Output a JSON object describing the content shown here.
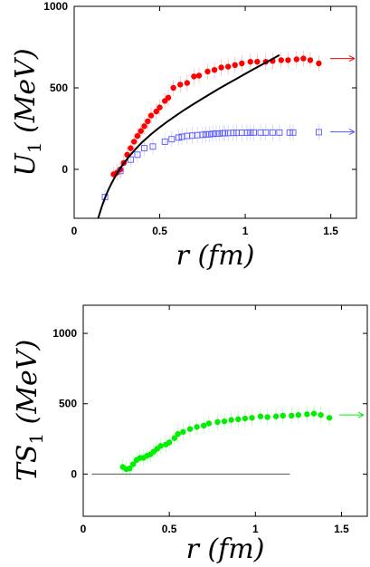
{
  "chart_data": [
    {
      "type": "scatter",
      "title": "",
      "xlabel": "r (fm)",
      "ylabel": "U1 (MeV)",
      "xlim": [
        0,
        1.65
      ],
      "ylim": [
        -300,
        1000
      ],
      "x_ticks": [
        "0",
        "0.5",
        "1",
        "1.5"
      ],
      "y_ticks": [
        "0",
        "500",
        "1000"
      ],
      "grid": false,
      "series": [
        {
          "marker": "filled-circle",
          "color": "#ff0000",
          "x": [
            0.23,
            0.25,
            0.27,
            0.29,
            0.31,
            0.33,
            0.35,
            0.37,
            0.39,
            0.41,
            0.43,
            0.45,
            0.48,
            0.5,
            0.53,
            0.55,
            0.58,
            0.62,
            0.66,
            0.7,
            0.73,
            0.78,
            0.82,
            0.86,
            0.9,
            0.94,
            0.98,
            1.03,
            1.07,
            1.12,
            1.16,
            1.21,
            1.25,
            1.3,
            1.34,
            1.38,
            1.43
          ],
          "y": [
            -30,
            -20,
            0,
            40,
            90,
            130,
            170,
            205,
            235,
            265,
            295,
            330,
            355,
            380,
            420,
            440,
            500,
            520,
            530,
            570,
            575,
            600,
            610,
            625,
            630,
            640,
            650,
            660,
            660,
            660,
            665,
            670,
            670,
            675,
            680,
            670,
            650
          ],
          "arrow_to_right": 680
        },
        {
          "marker": "open-square",
          "color": "#5555ff",
          "x": [
            0.18,
            0.27,
            0.33,
            0.37,
            0.41,
            0.46,
            0.53,
            0.57,
            0.61,
            0.63,
            0.66,
            0.69,
            0.72,
            0.75,
            0.77,
            0.79,
            0.81,
            0.83,
            0.85,
            0.87,
            0.88,
            0.9,
            0.93,
            0.95,
            0.98,
            1.01,
            1.03,
            1.05,
            1.09,
            1.12,
            1.16,
            1.2,
            1.26,
            1.28,
            1.43
          ],
          "y": [
            -170,
            -10,
            60,
            90,
            130,
            140,
            170,
            185,
            195,
            200,
            205,
            207,
            210,
            212,
            215,
            215,
            218,
            220,
            220,
            222,
            222,
            223,
            224,
            224,
            225,
            225,
            226,
            226,
            226,
            226,
            226,
            226,
            226,
            226,
            228
          ],
          "arrow_to_right": 230
        },
        {
          "type": "line",
          "color": "#000000",
          "x": [
            0.14,
            0.16,
            0.18,
            0.2,
            0.22,
            0.25,
            0.28,
            0.32,
            0.36,
            0.4,
            0.45,
            0.5,
            0.55,
            0.6,
            0.65,
            0.7,
            0.75,
            0.8,
            0.85,
            0.9,
            0.95,
            1.0,
            1.05,
            1.1,
            1.15,
            1.2
          ],
          "y": [
            -300,
            -232,
            -175,
            -125,
            -82,
            -25,
            23,
            78,
            126,
            169,
            216,
            258,
            297,
            334,
            369,
            402,
            434,
            466,
            497,
            527,
            556,
            586,
            615,
            644,
            672,
            701
          ]
        }
      ]
    },
    {
      "type": "scatter",
      "title": "",
      "xlabel": "r (fm)",
      "ylabel": "TS1 (MeV)",
      "xlim": [
        0,
        1.65
      ],
      "ylim": [
        -300,
        1200
      ],
      "x_ticks": [
        "0",
        "0.5",
        "1",
        "1.5"
      ],
      "y_ticks": [
        "0",
        "500",
        "1000"
      ],
      "grid": false,
      "series": [
        {
          "marker": "filled-circle",
          "color": "#00ee00",
          "x": [
            0.23,
            0.25,
            0.27,
            0.29,
            0.31,
            0.33,
            0.35,
            0.37,
            0.39,
            0.41,
            0.43,
            0.45,
            0.48,
            0.5,
            0.53,
            0.55,
            0.58,
            0.62,
            0.66,
            0.7,
            0.73,
            0.78,
            0.82,
            0.86,
            0.9,
            0.94,
            0.98,
            1.03,
            1.07,
            1.12,
            1.16,
            1.21,
            1.25,
            1.3,
            1.34,
            1.38,
            1.43
          ],
          "y": [
            50,
            35,
            40,
            70,
            100,
            115,
            115,
            130,
            140,
            160,
            180,
            200,
            210,
            225,
            255,
            285,
            300,
            320,
            335,
            345,
            360,
            370,
            375,
            385,
            390,
            395,
            400,
            410,
            405,
            410,
            415,
            415,
            420,
            425,
            430,
            420,
            400
          ],
          "arrow_to_right": 420
        },
        {
          "type": "line",
          "color": "#555555",
          "x": [
            0.05,
            1.2
          ],
          "y": [
            0,
            0
          ]
        }
      ]
    }
  ]
}
